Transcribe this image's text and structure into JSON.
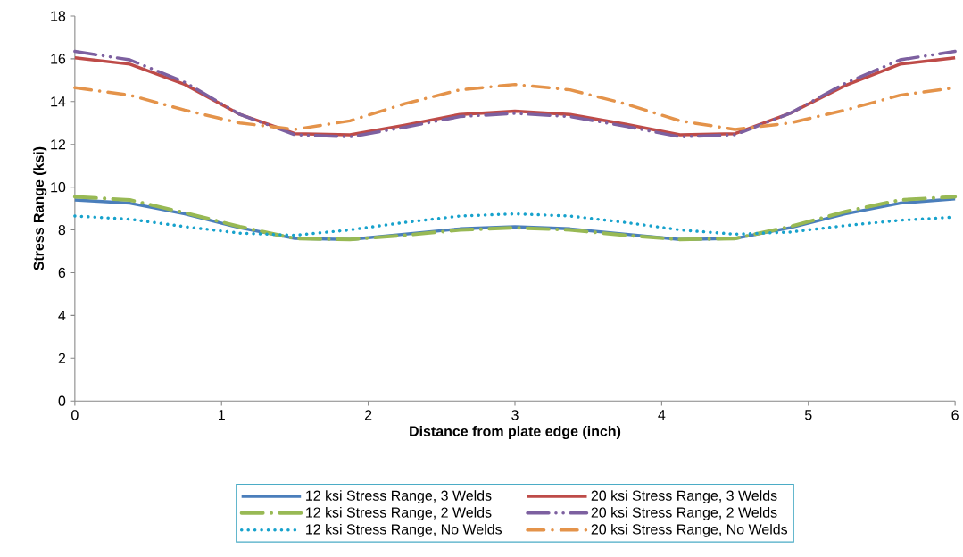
{
  "chart_data": {
    "type": "line",
    "xlabel": "Distance from plate edge (inch)",
    "ylabel": "Stress Range (ksi)",
    "x": [
      0,
      0.375,
      0.75,
      1.125,
      1.5,
      1.875,
      2.25,
      2.625,
      3,
      3.375,
      3.75,
      4.125,
      4.5,
      4.875,
      5.25,
      5.625,
      6
    ],
    "xlim": [
      0,
      6
    ],
    "xticks": [
      0,
      1,
      2,
      3,
      4,
      5,
      6
    ],
    "ylim": [
      0,
      18
    ],
    "yticks": [
      0,
      2,
      4,
      6,
      8,
      10,
      12,
      14,
      16,
      18
    ],
    "grid": false,
    "legend": "bottom",
    "series": [
      {
        "name": "12 ksi Stress Range, 3 Welds",
        "color": "#4a7ebb",
        "line_style": "solid",
        "values": [
          9.4,
          9.25,
          8.75,
          8.1,
          7.6,
          7.55,
          7.8,
          8.05,
          8.15,
          8.05,
          7.8,
          7.55,
          7.6,
          8.1,
          8.75,
          9.25,
          9.45
        ]
      },
      {
        "name": "20 ksi Stress Range, 3 Welds",
        "color": "#be4b48",
        "line_style": "solid",
        "values": [
          16.05,
          15.75,
          14.8,
          13.4,
          12.5,
          12.45,
          12.9,
          13.4,
          13.55,
          13.4,
          12.95,
          12.45,
          12.5,
          13.45,
          14.75,
          15.75,
          16.05
        ]
      },
      {
        "name": "12 ksi Stress Range, 2 Welds",
        "color": "#98b954",
        "line_style": "longdashdot",
        "values": [
          9.55,
          9.4,
          8.8,
          8.15,
          7.6,
          7.55,
          7.75,
          8.0,
          8.1,
          8.0,
          7.75,
          7.55,
          7.6,
          8.15,
          8.85,
          9.4,
          9.55
        ]
      },
      {
        "name": "20 ksi Stress Range, 2 Welds",
        "color": "#7d60a0",
        "line_style": "longdashdotdot",
        "values": [
          16.35,
          15.95,
          14.9,
          13.4,
          12.45,
          12.35,
          12.8,
          13.3,
          13.45,
          13.3,
          12.85,
          12.35,
          12.45,
          13.45,
          14.85,
          15.95,
          16.35
        ]
      },
      {
        "name": "12 ksi Stress Range, No Welds",
        "color": "#17a2cc",
        "line_style": "dotted",
        "values": [
          8.65,
          8.5,
          8.15,
          7.85,
          7.75,
          8.0,
          8.35,
          8.65,
          8.75,
          8.65,
          8.35,
          8.0,
          7.8,
          7.9,
          8.2,
          8.45,
          8.6
        ]
      },
      {
        "name": "20 ksi Stress Range, No Welds",
        "color": "#e4934a",
        "line_style": "dashdot",
        "values": [
          14.65,
          14.3,
          13.6,
          13.0,
          12.7,
          13.1,
          13.9,
          14.55,
          14.8,
          14.55,
          13.9,
          13.1,
          12.7,
          13.0,
          13.6,
          14.3,
          14.65
        ]
      }
    ]
  }
}
